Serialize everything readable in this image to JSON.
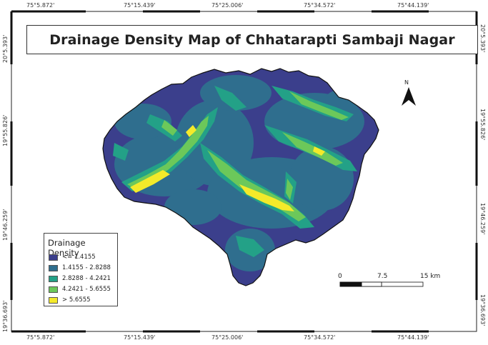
{
  "title": "Drainage Density Map of Chhatarapti Sambaji Nagar",
  "coordinates": {
    "longitude_labels": [
      "75°5.872'",
      "75°15.439'",
      "75°25.006'",
      "75°34.572'",
      "75°44.139'"
    ],
    "latitude_labels": [
      "20°5.393'",
      "19°55.826'",
      "19°46.259'",
      "19°36.693'"
    ]
  },
  "legend": {
    "title": "Drainage Density",
    "classes": [
      {
        "label": "<= 1.4155",
        "color": "#3b3f8c"
      },
      {
        "label": "1.4155 - 2.8288",
        "color": "#2f6e8e"
      },
      {
        "label": "2.8288 - 4.2421",
        "color": "#23a187"
      },
      {
        "label": "4.2421 - 5.6555",
        "color": "#6cc85a"
      },
      {
        "label": "> 5.6555",
        "color": "#f4ea2a"
      }
    ]
  },
  "north_arrow": {
    "label": "N"
  },
  "scale_bar": {
    "labels": [
      "0",
      "7.5",
      "15 km"
    ]
  },
  "colors": {
    "frame": "#222222",
    "outline": "#111111"
  }
}
